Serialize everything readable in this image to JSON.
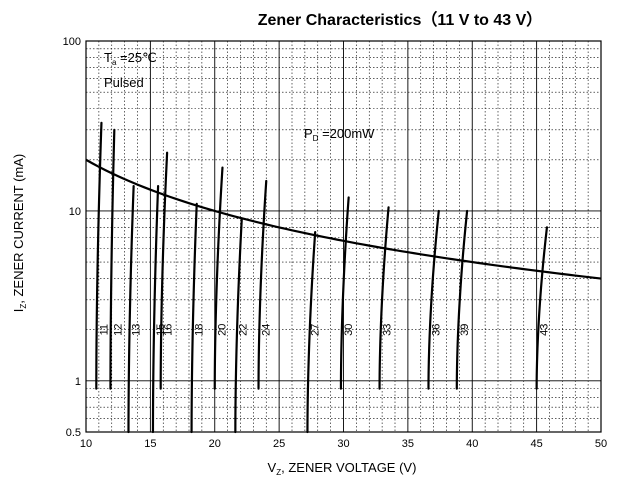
{
  "chart_data": {
    "type": "line",
    "title": "Zener Characteristics（11 V to 43 V）",
    "xlabel": {
      "main": "V",
      "sub": "Z",
      "rest": ", ZENER VOLTAGE (V)"
    },
    "ylabel": {
      "main": "I",
      "sub": "Z",
      "rest": ", ZENER CURRENT (mA)"
    },
    "x_scale": "linear",
    "y_scale": "log",
    "xlim": [
      10,
      50
    ],
    "ylim": [
      0.5,
      100
    ],
    "x_ticks": [
      10,
      15,
      20,
      25,
      30,
      35,
      40,
      45,
      50
    ],
    "x_tick_labels": [
      "10",
      "15",
      "20",
      "25",
      "30",
      "35",
      "40",
      "45",
      "50"
    ],
    "y_ticks": [
      0.5,
      1,
      10,
      100
    ],
    "y_tick_labels": [
      "0.5",
      "1",
      "10",
      "100"
    ],
    "grid": true,
    "annotations": {
      "ta": {
        "main": "T",
        "sub": "a",
        "rest": " =25℃"
      },
      "pulsed": "Pulsed",
      "pd": {
        "main": "P",
        "sub": "D",
        "rest": " =200mW"
      }
    },
    "power_limit": {
      "label": "P_D =200mW",
      "x": [
        10,
        15,
        20,
        25,
        30,
        35,
        40,
        45,
        50
      ],
      "y": [
        20.0,
        13.3,
        10.0,
        8.0,
        6.67,
        5.71,
        5.0,
        4.44,
        4.0
      ]
    },
    "zener_curves": [
      {
        "name": "11",
        "v_at_1mA": 10.8,
        "v_top": 11.2,
        "i_top": 33,
        "i_bottom": 0.9
      },
      {
        "name": "12",
        "v_at_1mA": 11.9,
        "v_top": 12.2,
        "i_top": 30,
        "i_bottom": 0.9
      },
      {
        "name": "13",
        "v_at_1mA": 13.3,
        "v_top": 13.7,
        "i_top": 14,
        "i_bottom": 0.5
      },
      {
        "name": "15",
        "v_at_1mA": 15.2,
        "v_top": 15.6,
        "i_top": 14,
        "i_bottom": 0.5
      },
      {
        "name": "16",
        "v_at_1mA": 15.8,
        "v_top": 16.3,
        "i_top": 22,
        "i_bottom": 0.9
      },
      {
        "name": "18",
        "v_at_1mA": 18.2,
        "v_top": 18.6,
        "i_top": 11,
        "i_bottom": 0.5
      },
      {
        "name": "20",
        "v_at_1mA": 20.0,
        "v_top": 20.6,
        "i_top": 18,
        "i_bottom": 0.9
      },
      {
        "name": "22",
        "v_at_1mA": 21.6,
        "v_top": 22.1,
        "i_top": 9,
        "i_bottom": 0.5
      },
      {
        "name": "24",
        "v_at_1mA": 23.4,
        "v_top": 24.0,
        "i_top": 15,
        "i_bottom": 0.9
      },
      {
        "name": "27",
        "v_at_1mA": 27.2,
        "v_top": 27.8,
        "i_top": 7.5,
        "i_bottom": 0.5
      },
      {
        "name": "30",
        "v_at_1mA": 29.8,
        "v_top": 30.4,
        "i_top": 12,
        "i_bottom": 0.9
      },
      {
        "name": "33",
        "v_at_1mA": 32.8,
        "v_top": 33.5,
        "i_top": 10.5,
        "i_bottom": 0.9
      },
      {
        "name": "36",
        "v_at_1mA": 36.6,
        "v_top": 37.4,
        "i_top": 10,
        "i_bottom": 0.9
      },
      {
        "name": "39",
        "v_at_1mA": 38.8,
        "v_top": 39.6,
        "i_top": 10,
        "i_bottom": 0.9
      },
      {
        "name": "43",
        "v_at_1mA": 45.0,
        "v_top": 45.8,
        "i_top": 8,
        "i_bottom": 0.9
      }
    ]
  }
}
